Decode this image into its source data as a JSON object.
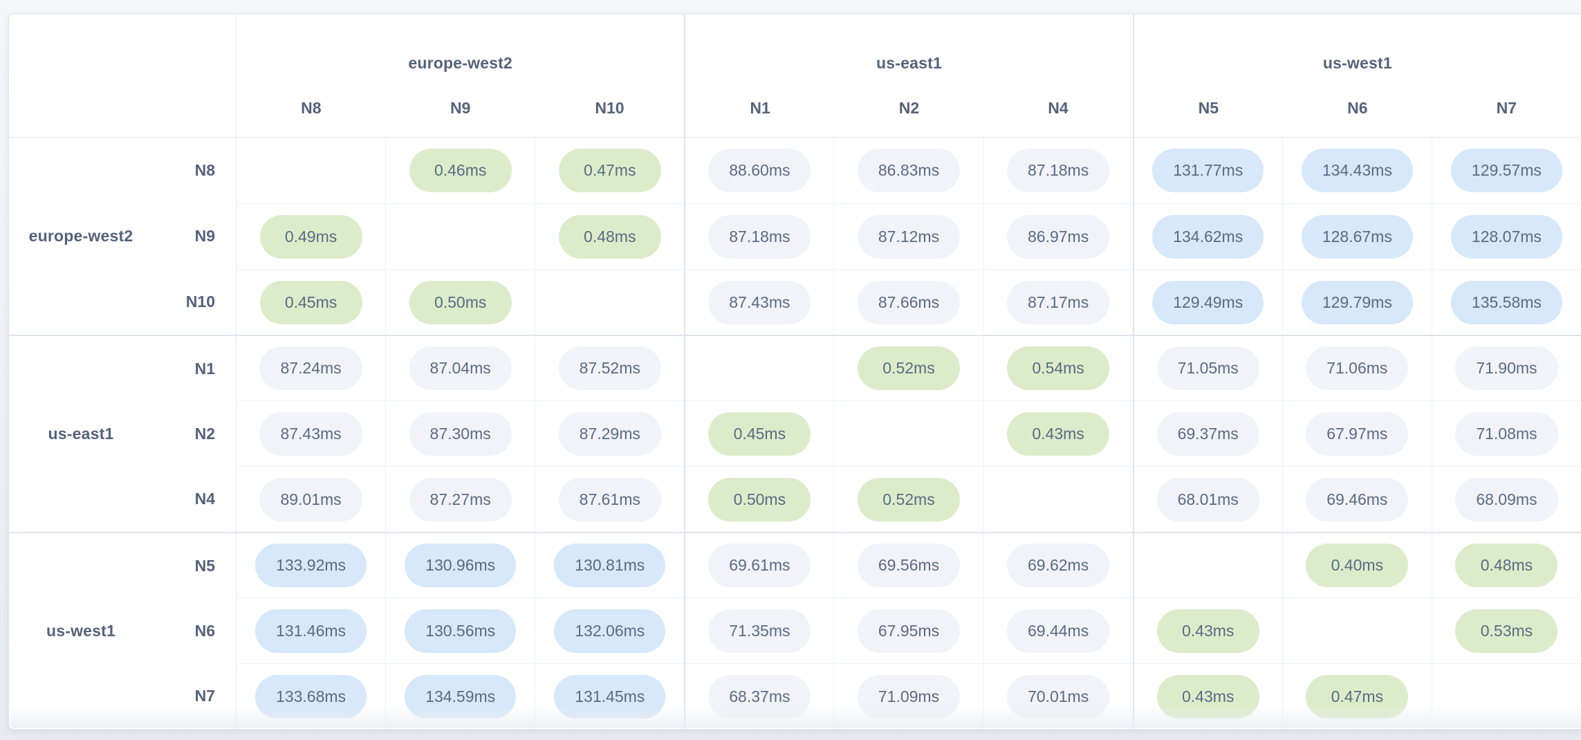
{
  "matrix": {
    "unit": "ms",
    "regions": [
      {
        "name": "europe-west2",
        "nodes": [
          "N8",
          "N9",
          "N10"
        ]
      },
      {
        "name": "us-east1",
        "nodes": [
          "N1",
          "N2",
          "N4"
        ]
      },
      {
        "name": "us-west1",
        "nodes": [
          "N5",
          "N6",
          "N7"
        ]
      }
    ],
    "columns": [
      "N8",
      "N9",
      "N10",
      "N1",
      "N2",
      "N4",
      "N5",
      "N6",
      "N7"
    ],
    "rows": [
      {
        "node": "N8",
        "region": "europe-west2",
        "values": [
          null,
          0.46,
          0.47,
          88.6,
          86.83,
          87.18,
          131.77,
          134.43,
          129.57
        ]
      },
      {
        "node": "N9",
        "region": "europe-west2",
        "values": [
          0.49,
          null,
          0.48,
          87.18,
          87.12,
          86.97,
          134.62,
          128.67,
          128.07
        ]
      },
      {
        "node": "N10",
        "region": "europe-west2",
        "values": [
          0.45,
          0.5,
          null,
          87.43,
          87.66,
          87.17,
          129.49,
          129.79,
          135.58
        ]
      },
      {
        "node": "N1",
        "region": "us-east1",
        "values": [
          87.24,
          87.04,
          87.52,
          null,
          0.52,
          0.54,
          71.05,
          71.06,
          71.9
        ]
      },
      {
        "node": "N2",
        "region": "us-east1",
        "values": [
          87.43,
          87.3,
          87.29,
          0.45,
          null,
          0.43,
          69.37,
          67.97,
          71.08
        ]
      },
      {
        "node": "N4",
        "region": "us-east1",
        "values": [
          89.01,
          87.27,
          87.61,
          0.5,
          0.52,
          null,
          68.01,
          69.46,
          68.09
        ]
      },
      {
        "node": "N5",
        "region": "us-west1",
        "values": [
          133.92,
          130.96,
          130.81,
          69.61,
          69.56,
          69.62,
          null,
          0.4,
          0.48
        ]
      },
      {
        "node": "N6",
        "region": "us-west1",
        "values": [
          131.46,
          130.56,
          132.06,
          71.35,
          67.95,
          69.44,
          0.43,
          null,
          0.53
        ]
      },
      {
        "node": "N7",
        "region": "us-west1",
        "values": [
          133.68,
          134.59,
          131.45,
          68.37,
          71.09,
          70.01,
          0.43,
          0.47,
          null
        ]
      }
    ],
    "colors": {
      "low": "#dcecca",
      "mid": "#f1f3f8",
      "high": "#d6e8f9"
    }
  }
}
